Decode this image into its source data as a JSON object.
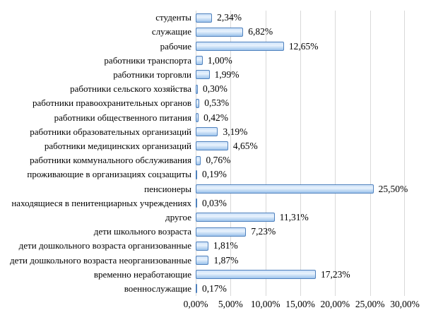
{
  "chart_data": {
    "type": "bar",
    "orientation": "horizontal",
    "title": "",
    "categories": [
      "студенты",
      "служащие",
      "рабочие",
      "работники транспорта",
      "работники торговли",
      "работники сельского хозяйства",
      "работники правоохранительных органов",
      "работники общественного питания",
      "работники образовательных организаций",
      "работники медицинских организаций",
      "работники коммунального обслуживания",
      "проживающие в организациях соцзащиты",
      "пенсионеры",
      "находящиеся в пенитенциарных учреждениях",
      "другое",
      "дети школьного возраста",
      "дети дошкольного возраста организованные",
      "дети дошкольного возраста неорганизованные",
      "временно неработающие",
      "военнослужащие"
    ],
    "values": [
      2.34,
      6.82,
      12.65,
      1.0,
      1.99,
      0.3,
      0.53,
      0.42,
      3.19,
      4.65,
      0.76,
      0.19,
      25.5,
      0.03,
      11.31,
      7.23,
      1.81,
      1.87,
      17.23,
      0.17
    ],
    "value_labels": [
      "2,34%",
      "6,82%",
      "12,65%",
      "1,00%",
      "1,99%",
      "0,30%",
      "0,53%",
      "0,42%",
      "3,19%",
      "4,65%",
      "0,76%",
      "0,19%",
      "25,50%",
      "0,03%",
      "11,31%",
      "7,23%",
      "1,81%",
      "1,87%",
      "17,23%",
      "0,17%"
    ],
    "x_ticks": [
      "0,00%",
      "5,00%",
      "10,00%",
      "15,00%",
      "20,00%",
      "25,00%",
      "30,00%"
    ],
    "x_tick_values": [
      0,
      5,
      10,
      15,
      20,
      25,
      30
    ],
    "xlim": [
      0,
      30
    ],
    "xlabel": "",
    "ylabel": "",
    "legend": "none",
    "grid": "vertical",
    "colors": {
      "bar_border": "#4f81bd",
      "bar_fill_top": "#cde1f8",
      "bar_fill_mid": "#e9f3fd",
      "bar_fill_bottom": "#9dc4ed",
      "gridline": "#d9d9d9",
      "text": "#000000",
      "background": "#ffffff"
    }
  }
}
